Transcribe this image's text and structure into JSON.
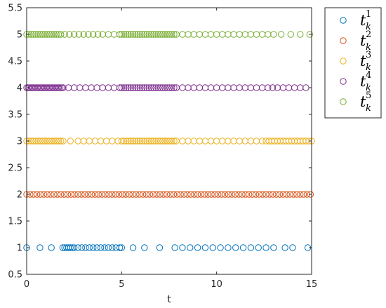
{
  "chart_data": {
    "type": "scatter",
    "xlabel": "t",
    "ylabel": "",
    "xlim": [
      0,
      15
    ],
    "ylim": [
      0.5,
      5.5
    ],
    "xticks": [
      "0",
      "5",
      "10",
      "15"
    ],
    "yticks": [
      "0.5",
      "1",
      "1.5",
      "2",
      "2.5",
      "3",
      "3.5",
      "4",
      "4.5",
      "5",
      "5.5"
    ],
    "grid": false,
    "marker": "open-circle",
    "legend_position": "outside-top-right",
    "series": [
      {
        "name": "t_k^1",
        "symbol": "t",
        "sub": "k",
        "sup": "1",
        "color": "#0072BD",
        "y": 1,
        "x": [
          0,
          0.7,
          1.3,
          1.9,
          2.0,
          2.1,
          2.2,
          2.3,
          2.4,
          2.5,
          2.7,
          2.9,
          3.1,
          3.3,
          3.5,
          3.7,
          3.9,
          4.1,
          4.3,
          4.5,
          4.7,
          4.9,
          5.0,
          5.6,
          6.2,
          7.0,
          7.8,
          8.2,
          8.6,
          9.0,
          9.4,
          9.8,
          10.2,
          10.6,
          11.0,
          11.4,
          11.8,
          12.2,
          12.6,
          13.0,
          13.6,
          14.0,
          14.8
        ]
      },
      {
        "name": "t_k^2",
        "symbol": "t",
        "sub": "k",
        "sup": "2",
        "color": "#D95319",
        "y": 2,
        "x": [
          0,
          0.18,
          0.36,
          0.54,
          0.72,
          0.9,
          1.08,
          1.26,
          1.44,
          1.62,
          1.8,
          1.98,
          2.16,
          2.34,
          2.52,
          2.7,
          2.88,
          3.06,
          3.24,
          3.42,
          3.6,
          3.78,
          3.96,
          4.14,
          4.32,
          4.5,
          4.68,
          4.86,
          5.04,
          5.22,
          5.4,
          5.58,
          5.76,
          5.94,
          6.12,
          6.3,
          6.48,
          6.66,
          6.84,
          7.02,
          7.2,
          7.38,
          7.56,
          7.74,
          7.92,
          8.1,
          8.28,
          8.46,
          8.64,
          8.82,
          9.0,
          9.18,
          9.36,
          9.54,
          9.72,
          9.9,
          10.08,
          10.26,
          10.44,
          10.62,
          10.8,
          10.98,
          11.16,
          11.34,
          11.52,
          11.7,
          11.88,
          12.06,
          12.24,
          12.42,
          12.6,
          12.78,
          12.96,
          13.14,
          13.32,
          13.5,
          13.68,
          13.86,
          14.04,
          14.22,
          14.4,
          14.58,
          14.76,
          14.94
        ]
      },
      {
        "name": "t_k^3",
        "symbol": "t",
        "sub": "k",
        "sup": "3",
        "color": "#EDB120",
        "y": 3,
        "x": [
          0,
          0.12,
          0.24,
          0.36,
          0.48,
          0.6,
          0.72,
          0.84,
          0.96,
          1.08,
          1.2,
          1.32,
          1.44,
          1.56,
          1.68,
          1.8,
          1.92,
          2.3,
          2.7,
          3.0,
          3.3,
          3.6,
          3.9,
          4.2,
          4.5,
          4.8,
          5.0,
          5.12,
          5.24,
          5.36,
          5.48,
          5.6,
          5.72,
          5.84,
          5.96,
          6.08,
          6.2,
          6.32,
          6.44,
          6.56,
          6.68,
          6.8,
          6.92,
          7.04,
          7.16,
          7.28,
          7.4,
          7.52,
          7.64,
          7.76,
          7.88,
          8.2,
          8.5,
          8.8,
          9.1,
          9.4,
          9.7,
          10.0,
          10.3,
          10.6,
          10.9,
          11.2,
          11.5,
          11.8,
          12.1,
          12.4,
          12.6,
          12.75,
          12.9,
          13.05,
          13.2,
          13.35,
          13.5,
          13.65,
          13.8,
          13.95,
          14.1,
          14.25,
          14.4,
          14.55,
          14.7,
          14.85,
          15.0
        ]
      },
      {
        "name": "t_k^4",
        "symbol": "t",
        "sub": "k",
        "sup": "4",
        "color": "#7E2F8E",
        "y": 4,
        "x": [
          0,
          0.08,
          0.16,
          0.24,
          0.32,
          0.4,
          0.48,
          0.56,
          0.64,
          0.72,
          0.8,
          0.88,
          0.96,
          1.04,
          1.12,
          1.2,
          1.28,
          1.36,
          1.44,
          1.52,
          1.6,
          1.68,
          1.76,
          1.84,
          1.92,
          2.2,
          2.5,
          2.8,
          3.1,
          3.4,
          3.7,
          4.0,
          4.3,
          4.6,
          4.9,
          5.0,
          5.12,
          5.24,
          5.36,
          5.48,
          5.6,
          5.72,
          5.84,
          5.96,
          6.08,
          6.2,
          6.32,
          6.44,
          6.56,
          6.68,
          6.8,
          6.92,
          7.04,
          7.16,
          7.28,
          7.4,
          7.52,
          7.64,
          7.76,
          7.88,
          8.2,
          8.5,
          8.8,
          9.1,
          9.4,
          9.7,
          10.0,
          10.3,
          10.6,
          10.9,
          11.2,
          11.5,
          11.8,
          12.1,
          12.4,
          12.7,
          12.95,
          13.2,
          13.5,
          13.8,
          14.1,
          14.4,
          14.7
        ]
      },
      {
        "name": "t_k^5",
        "symbol": "t",
        "sub": "k",
        "sup": "5",
        "color": "#77AC30",
        "y": 5,
        "x": [
          0,
          0.12,
          0.24,
          0.36,
          0.48,
          0.6,
          0.72,
          0.84,
          0.96,
          1.08,
          1.2,
          1.32,
          1.44,
          1.56,
          1.68,
          1.8,
          2.0,
          2.25,
          2.5,
          2.75,
          3.0,
          3.25,
          3.5,
          3.75,
          4.0,
          4.3,
          4.6,
          4.9,
          5.0,
          5.12,
          5.24,
          5.36,
          5.48,
          5.6,
          5.72,
          5.84,
          5.96,
          6.08,
          6.2,
          6.32,
          6.44,
          6.56,
          6.68,
          6.8,
          6.92,
          7.04,
          7.16,
          7.28,
          7.4,
          7.52,
          7.64,
          7.76,
          7.88,
          8.2,
          8.5,
          8.8,
          9.1,
          9.4,
          9.7,
          10.0,
          10.3,
          10.6,
          10.9,
          11.2,
          11.5,
          11.8,
          12.1,
          12.4,
          12.7,
          13.0,
          13.4,
          13.9,
          14.4,
          14.9
        ]
      }
    ]
  }
}
